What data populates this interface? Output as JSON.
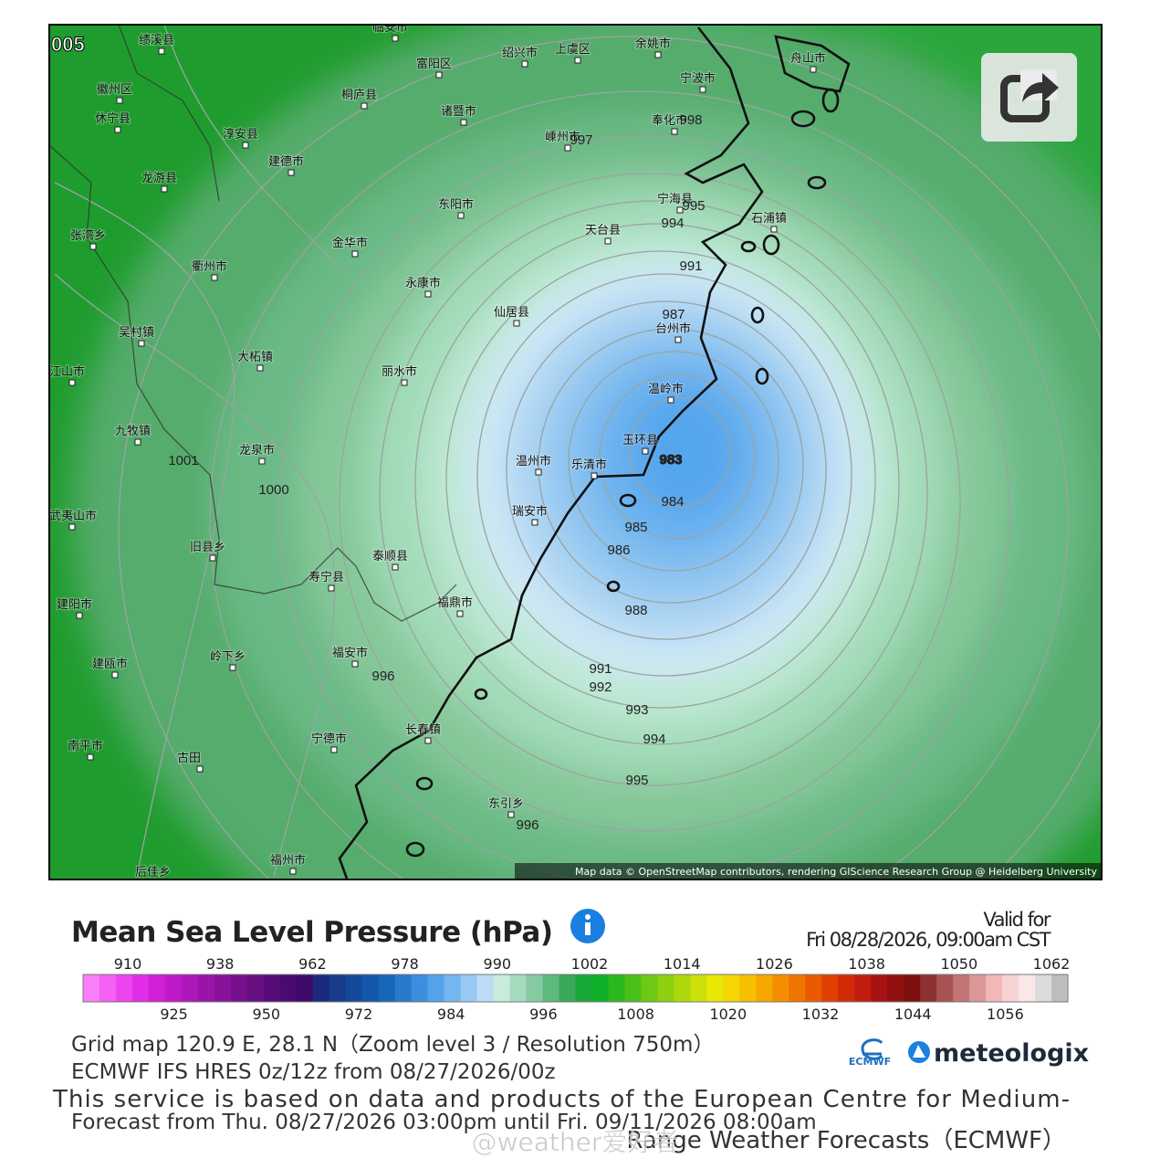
{
  "map": {
    "corner_label": "005",
    "cities": [
      "绩溪县",
      "临安市",
      "富阳区",
      "绍兴市",
      "上虞区",
      "余姚市",
      "舟山市",
      "徽州区",
      "休宁县",
      "桐庐县",
      "诸暨市",
      "宁波市",
      "奉化市",
      "淳安县",
      "嵊州市",
      "建德市",
      "龙游县",
      "东阳市",
      "宁海县",
      "天台县",
      "石浦镇",
      "张湾乡",
      "金华市",
      "衢州市",
      "永康市",
      "仙居县",
      "台州市",
      "吴村镇",
      "大柘镇",
      "丽水市",
      "温岭市",
      "江山市",
      "九牧镇",
      "龙泉市",
      "玉环县",
      "温州市",
      "乐清市",
      "瑞安市",
      "泰顺县",
      "旧县乡",
      "寿宁县",
      "武夷山市",
      "福鼎市",
      "建阳市",
      "福安市",
      "岭下乡",
      "建瓯市",
      "宁德市",
      "长春镇",
      "南平市",
      "古田",
      "东引乡",
      "福州市",
      "后佳乡"
    ],
    "isobar_labels": [
      983,
      984,
      985,
      986,
      988,
      991,
      992,
      993,
      994,
      995,
      996,
      996,
      1000,
      1001,
      994,
      991,
      987,
      998,
      997,
      995
    ],
    "attribution": "Map data © OpenStreetMap contributors, rendering GIScience Research Group @ Heidelberg University"
  },
  "legend": {
    "title": "Mean Sea Level Pressure (hPa)",
    "valid_label": "Valid for",
    "valid_time": "Fri 08/28/2026, 09:00am CST",
    "top_ticks": [
      910,
      938,
      962,
      978,
      990,
      1002,
      1014,
      1026,
      1038,
      1050,
      1062
    ],
    "bottom_ticks": [
      925,
      950,
      972,
      984,
      996,
      1008,
      1020,
      1032,
      1044,
      1056
    ],
    "colors": [
      "#f97ef9",
      "#f560f5",
      "#ee44ee",
      "#e22ee6",
      "#d21fd8",
      "#c01ac8",
      "#ad17b8",
      "#9a14a8",
      "#881299",
      "#76108c",
      "#660f80",
      "#570d78",
      "#4a0b70",
      "#3d0a6a",
      "#1c2a7e",
      "#173c8c",
      "#14499a",
      "#1257a8",
      "#1766b8",
      "#2a79cc",
      "#3e8ede",
      "#56a2ea",
      "#75b6f0",
      "#98c9f3",
      "#bcdcf5",
      "#c8ecdc",
      "#a5dcc0",
      "#86caa2",
      "#5db97c",
      "#3aa85a",
      "#18a83a",
      "#10b02a",
      "#2ab81e",
      "#4cc01a",
      "#6ec814",
      "#8ed010",
      "#aed80c",
      "#cce00a",
      "#e8e806",
      "#f4d604",
      "#f6c000",
      "#f6a800",
      "#f48e00",
      "#f07400",
      "#ea5a00",
      "#e04000",
      "#d22a06",
      "#c01c10",
      "#a81212",
      "#901010",
      "#7e1010",
      "#8c3030",
      "#a85454",
      "#c27474",
      "#dc9898",
      "#f2b8b8",
      "#f7d4d4",
      "#fae8e8",
      "#dcdcdc",
      "#bdbdbd"
    ]
  },
  "footer": {
    "grid": "Grid map 120.9 E, 28.1 N（Zoom level 3 / Resolution 750m）",
    "model": "ECMWF IFS HRES 0z/12z from 08/27/2026/00z",
    "service_1": "This service is based on data and products of the European Centre for Medium-",
    "forecast": "Forecast from Thu. 08/27/2026 03:00pm until Fri. 09/11/2026 08:00am",
    "service_2": "Range Weather Forecasts（ECMWF）",
    "ecmwf_logo": "ECMWF",
    "brand": "meteologix",
    "watermark": "@weather爱好者"
  }
}
